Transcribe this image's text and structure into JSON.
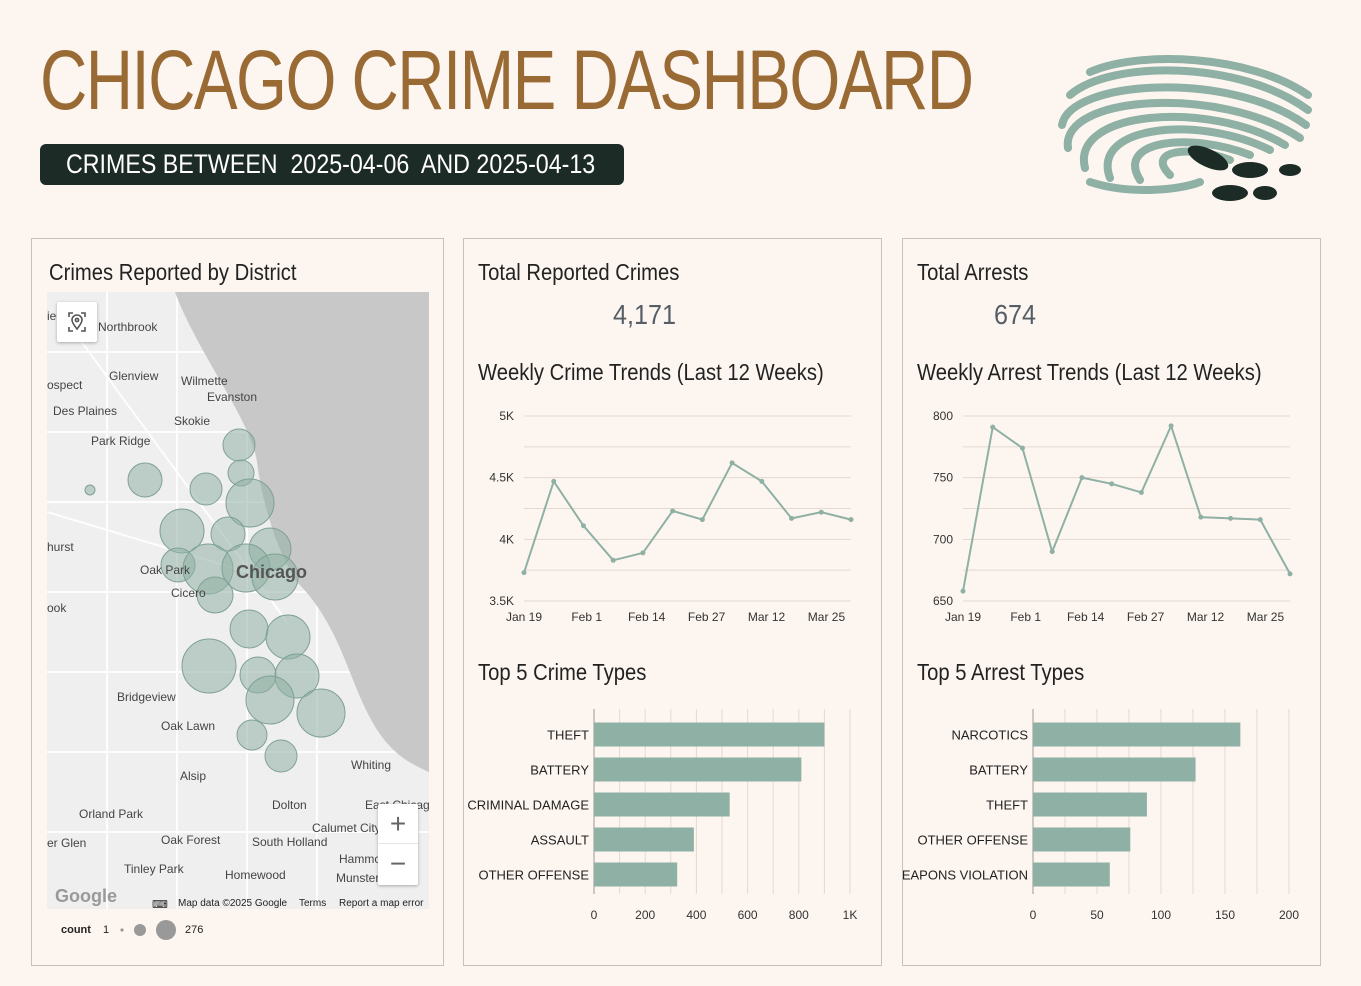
{
  "header": {
    "title": "CHICAGO CRIME DASHBOARD",
    "date_prefix": "CRIMES BETWEEN",
    "start_date": "2025-04-06",
    "date_joiner": "AND",
    "end_date": "2025-04-13"
  },
  "logo": {
    "icon": "fingerprint-footprints-logo"
  },
  "map_panel": {
    "title": "Crimes Reported by District",
    "places": [
      "Northbrook",
      "Glenview",
      "Wilmette",
      "Evanston",
      "Des Plaines",
      "Skokie",
      "Park Ridge",
      "Oak Park",
      "Chicago",
      "Cicero",
      "Bridgeview",
      "Oak Lawn",
      "Alsip",
      "Whiting",
      "Orland Park",
      "Dolton",
      "East Chicag",
      "Calumet City",
      "Oak Forest",
      "South Holland",
      "Hammo",
      "Munster",
      "Tinley Park",
      "Homewood",
      "ospect",
      "hurst",
      "ook",
      "er Glen",
      "iee"
    ],
    "attribution": "Map data ©2025 Google",
    "terms": "Terms",
    "report": "Report a map error",
    "google": "Google",
    "zoom_in": "+",
    "zoom_out": "−",
    "legend": {
      "label": "count",
      "min": "1",
      "max": "276"
    },
    "colors": {
      "bubble": "#8fb0a4",
      "water": "#c8c8c8"
    }
  },
  "crimes_panel": {
    "total_label": "Total Reported Crimes",
    "total_value": "4,171",
    "trend_title": "Weekly Crime Trends (Last 12 Weeks)",
    "top_title": "Top 5 Crime Types"
  },
  "arrests_panel": {
    "total_label": "Total Arrests",
    "total_value": "674",
    "trend_title": "Weekly Arrest Trends (Last 12 Weeks)",
    "top_title": "Top 5 Arrest Types"
  },
  "chart_data": [
    {
      "type": "line",
      "title": "Weekly Crime Trends (Last 12 Weeks)",
      "x_ticks": [
        "Jan 19",
        "Feb 1",
        "Feb 14",
        "Feb 27",
        "Mar 12",
        "Mar 25"
      ],
      "y_ticks": [
        "3.5K",
        "4K",
        "4.5K",
        "5K"
      ],
      "ylim": [
        3500,
        5000
      ],
      "values": [
        3730,
        4470,
        4110,
        3830,
        3890,
        4230,
        4160,
        4620,
        4470,
        4170,
        4220,
        4160
      ],
      "color": "#8fb0a4"
    },
    {
      "type": "line",
      "title": "Weekly Arrest Trends (Last 12 Weeks)",
      "x_ticks": [
        "Jan 19",
        "Feb 1",
        "Feb 14",
        "Feb 27",
        "Mar 12",
        "Mar 25"
      ],
      "y_ticks": [
        "650",
        "700",
        "750",
        "800"
      ],
      "ylim": [
        650,
        800
      ],
      "values": [
        658,
        791,
        774,
        690,
        750,
        745,
        738,
        792,
        718,
        717,
        716,
        672
      ],
      "color": "#8fb0a4"
    },
    {
      "type": "bar",
      "title": "Top 5 Crime Types",
      "categories": [
        "THEFT",
        "BATTERY",
        "CRIMINAL DAMAGE",
        "ASSAULT",
        "OTHER OFFENSE"
      ],
      "values": [
        900,
        810,
        530,
        390,
        325
      ],
      "x_ticks": [
        "0",
        "200",
        "400",
        "600",
        "800",
        "1K"
      ],
      "xlim": [
        0,
        1000
      ],
      "color": "#8fb0a4"
    },
    {
      "type": "bar",
      "title": "Top 5 Arrest Types",
      "categories": [
        "NARCOTICS",
        "BATTERY",
        "THEFT",
        "OTHER OFFENSE",
        "WEAPONS VIOLATION"
      ],
      "values": [
        162,
        127,
        89,
        76,
        60
      ],
      "x_ticks": [
        "0",
        "50",
        "100",
        "150",
        "200"
      ],
      "xlim": [
        0,
        200
      ],
      "color": "#8fb0a4"
    }
  ]
}
